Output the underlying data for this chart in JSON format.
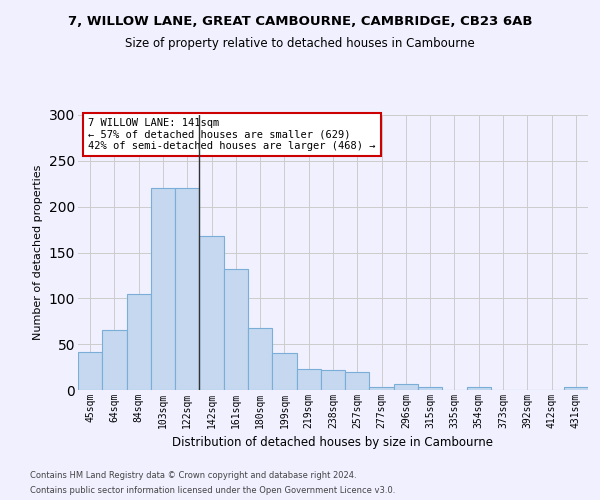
{
  "title": "7, WILLOW LANE, GREAT CAMBOURNE, CAMBRIDGE, CB23 6AB",
  "subtitle": "Size of property relative to detached houses in Cambourne",
  "xlabel": "Distribution of detached houses by size in Cambourne",
  "ylabel": "Number of detached properties",
  "footer1": "Contains HM Land Registry data © Crown copyright and database right 2024.",
  "footer2": "Contains public sector information licensed under the Open Government Licence v3.0.",
  "categories": [
    "45sqm",
    "64sqm",
    "84sqm",
    "103sqm",
    "122sqm",
    "142sqm",
    "161sqm",
    "180sqm",
    "199sqm",
    "219sqm",
    "238sqm",
    "257sqm",
    "277sqm",
    "296sqm",
    "315sqm",
    "335sqm",
    "354sqm",
    "373sqm",
    "392sqm",
    "412sqm",
    "431sqm"
  ],
  "values": [
    41,
    65,
    105,
    220,
    220,
    168,
    132,
    68,
    40,
    23,
    22,
    20,
    3,
    7,
    3,
    0,
    3,
    0,
    0,
    0,
    3
  ],
  "bar_color": "#c5d8f0",
  "bar_edge_color": "#7aaed6",
  "highlight_index": 4,
  "highlight_line_color": "#333333",
  "annotation_text": "7 WILLOW LANE: 141sqm\n← 57% of detached houses are smaller (629)\n42% of semi-detached houses are larger (468) →",
  "annotation_box_color": "#ffffff",
  "annotation_box_edge": "#cc0000",
  "ylim": [
    0,
    300
  ],
  "yticks": [
    0,
    50,
    100,
    150,
    200,
    250,
    300
  ],
  "background_color": "#f0f0ff",
  "grid_color": "#cccccc",
  "title_fontsize": 9.5,
  "subtitle_fontsize": 8.5,
  "ylabel_fontsize": 8,
  "xlabel_fontsize": 8.5,
  "tick_fontsize": 7,
  "footer_fontsize": 6,
  "annotation_fontsize": 7.5
}
